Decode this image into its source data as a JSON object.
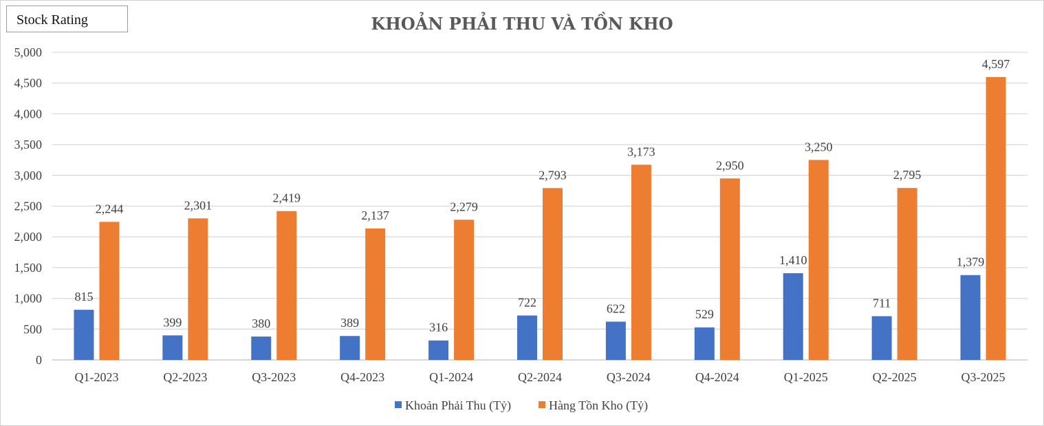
{
  "badge": {
    "label": "Stock Rating"
  },
  "chart_data": {
    "type": "bar",
    "title": "KHOẢN PHẢI THU VÀ TỒN KHO",
    "xlabel": "",
    "ylabel": "",
    "ylim": [
      0,
      5000
    ],
    "yticks": [
      0,
      500,
      1000,
      1500,
      2000,
      2500,
      3000,
      3500,
      4000,
      4500,
      5000
    ],
    "ytick_labels": [
      "0",
      "500",
      "1,000",
      "1,500",
      "2,000",
      "2,500",
      "3,000",
      "3,500",
      "4,000",
      "4,500",
      "5,000"
    ],
    "grid": true,
    "legend_position": "bottom",
    "categories": [
      "Q1-2023",
      "Q2-2023",
      "Q3-2023",
      "Q4-2023",
      "Q1-2024",
      "Q2-2024",
      "Q3-2024",
      "Q4-2024",
      "Q1-2025",
      "Q2-2025",
      "Q3-2025"
    ],
    "series": [
      {
        "name": "Khoản Phải Thu (Tỷ)",
        "color": "#4472c4",
        "values": [
          815,
          399,
          380,
          389,
          316,
          722,
          622,
          529,
          1410,
          711,
          1379
        ],
        "labels": [
          "815",
          "399",
          "380",
          "389",
          "316",
          "722",
          "622",
          "529",
          "1,410",
          "711",
          "1,379"
        ]
      },
      {
        "name": "Hàng Tồn Kho (Tỷ)",
        "color": "#ed7d31",
        "values": [
          2244,
          2301,
          2419,
          2137,
          2279,
          2793,
          3173,
          2950,
          3250,
          2795,
          4597
        ],
        "labels": [
          "2,244",
          "2,301",
          "2,419",
          "2,137",
          "2,279",
          "2,793",
          "3,173",
          "2,950",
          "3,250",
          "2,795",
          "4,597"
        ]
      }
    ]
  }
}
